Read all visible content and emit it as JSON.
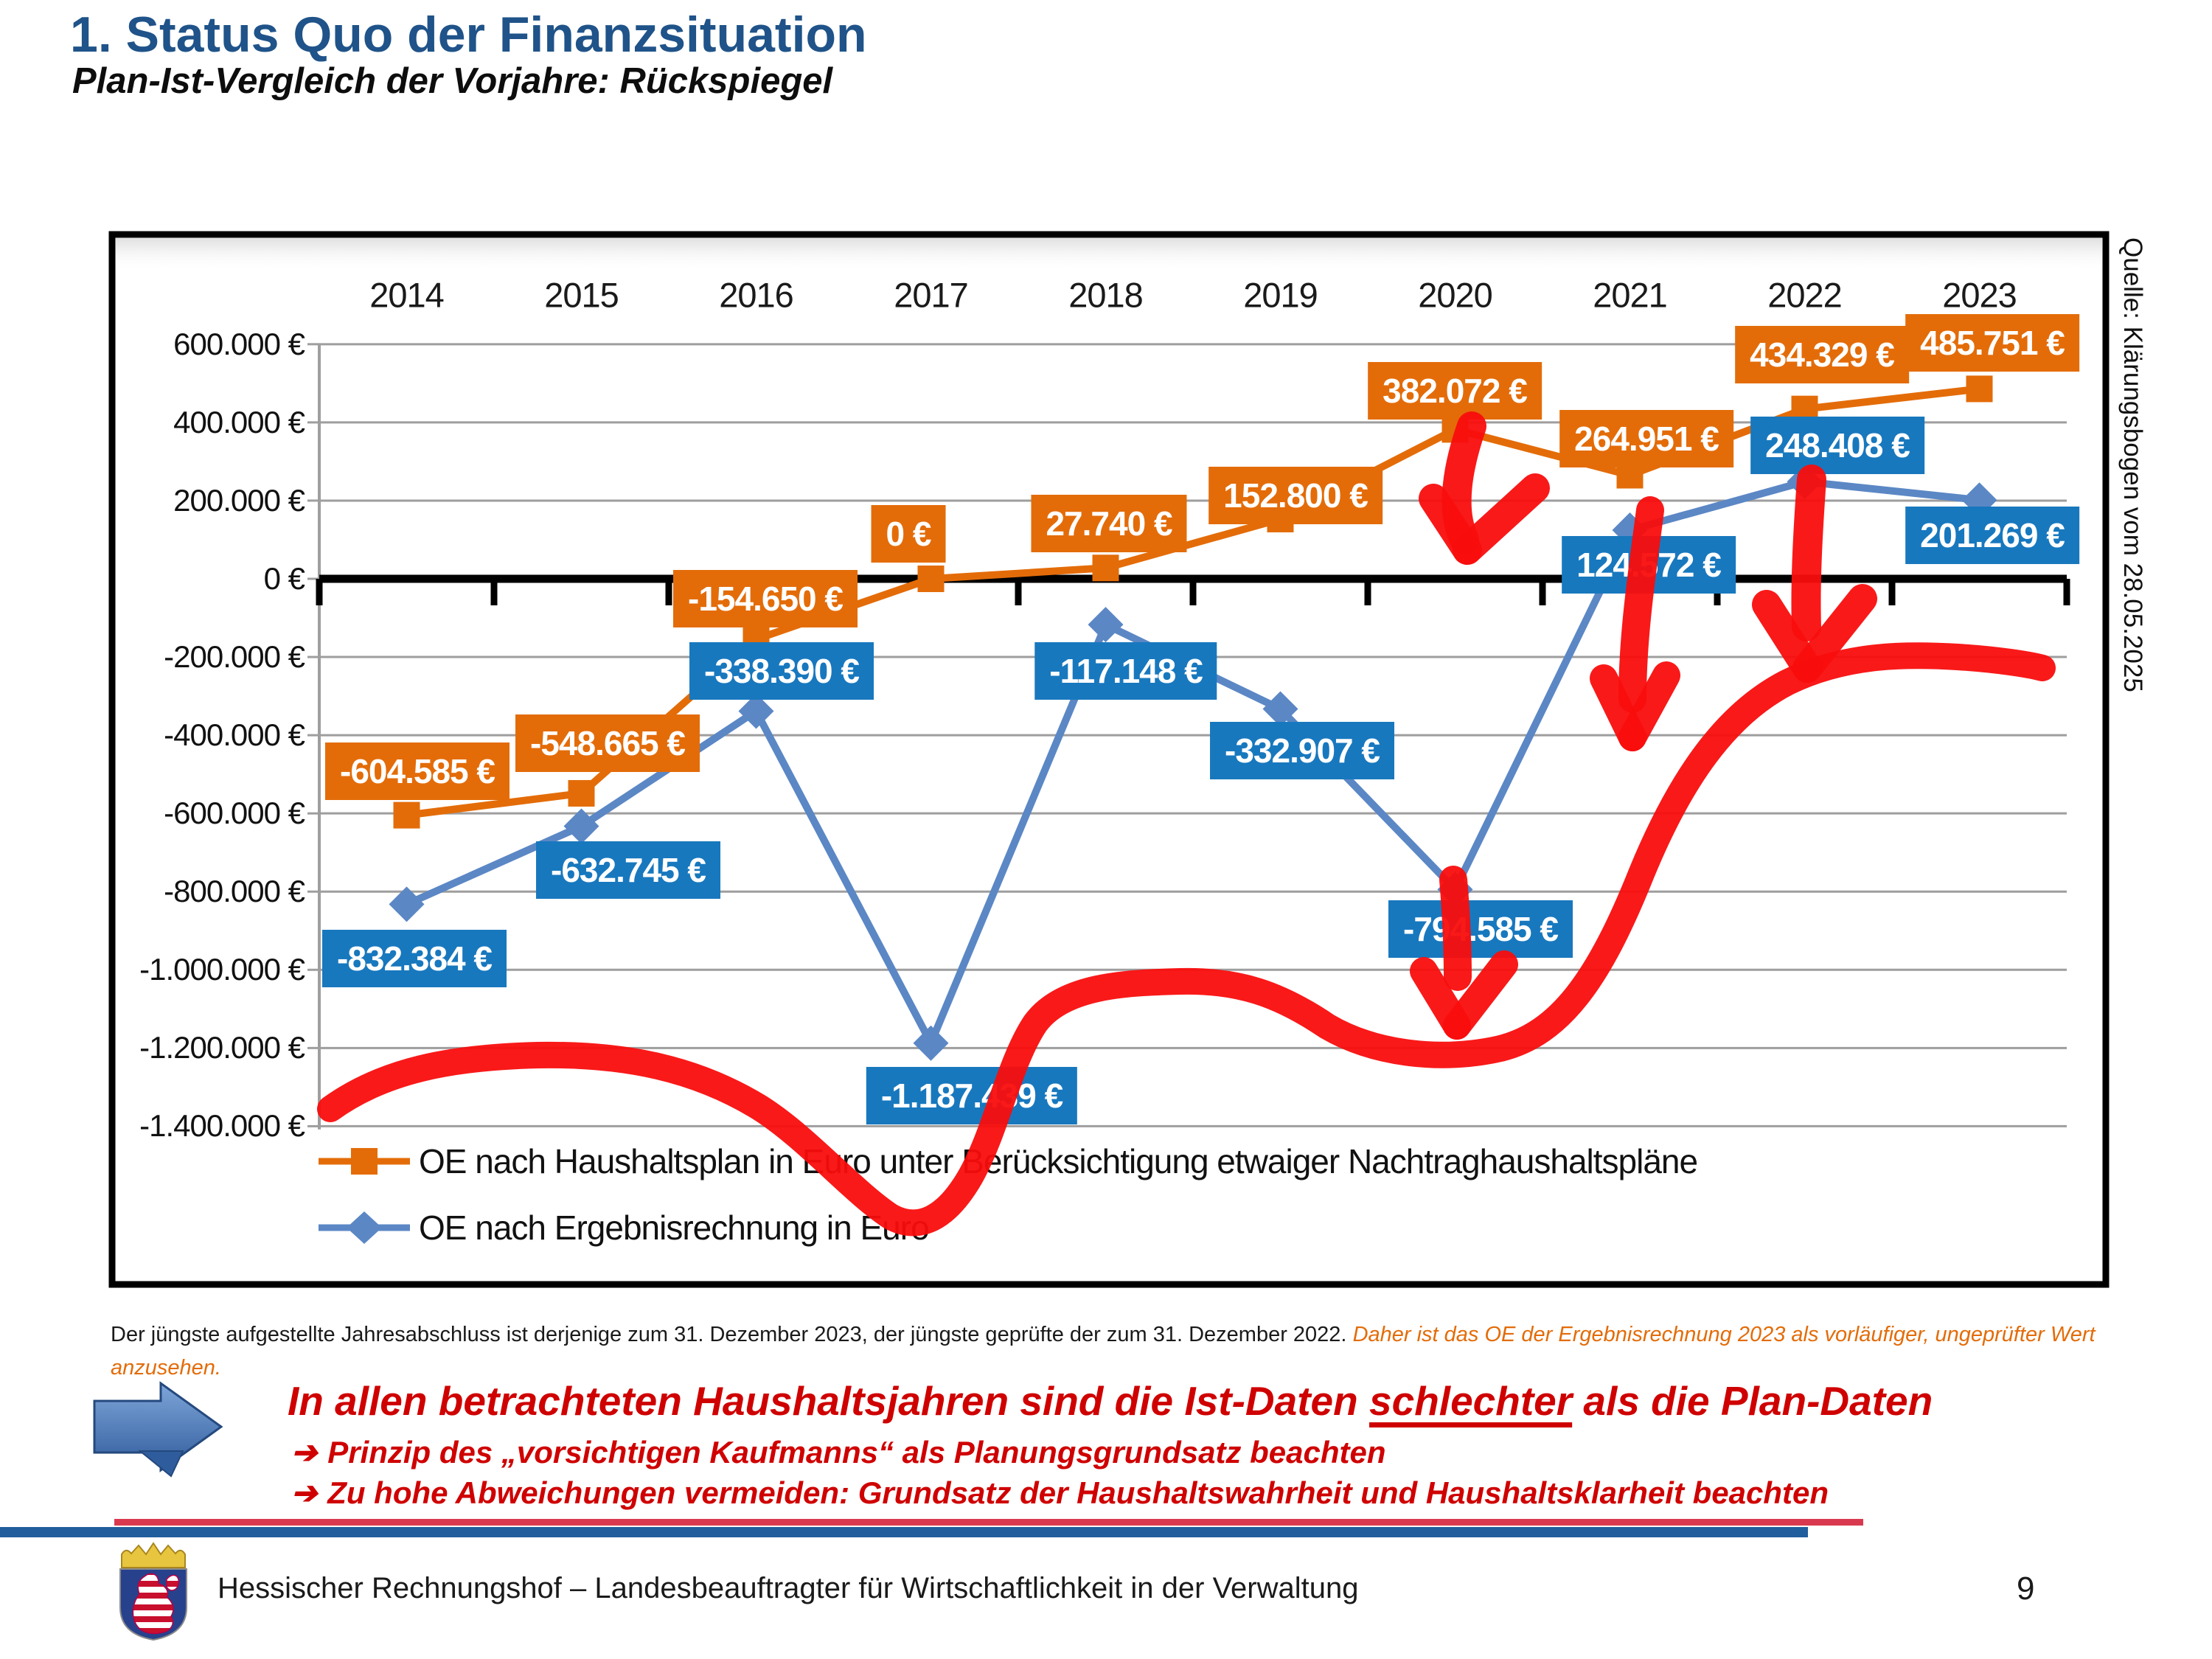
{
  "slide": {
    "title": "1. Status Quo der Finanzsituation",
    "subtitle": "Plan-Ist-Vergleich der Vorjahre: Rückspiegel",
    "source_note": "Quelle: Klärungsbogen vom 28.05.2025",
    "footer": "Hessischer Rechnungshof – Landesbeauftragter für Wirtschaftlichkeit in der Verwaltung",
    "page_number": "9"
  },
  "notes": {
    "black": "Der jüngste aufgestellte Jahresabschluss ist derjenige zum 31. Dezember 2023, der jüngste geprüfte der zum 31. Dezember 2022. ",
    "orange_italic": "Daher ist das OE der Ergebnisrechnung 2023 als vorläufiger, ungeprüfter Wert anzusehen."
  },
  "callout": {
    "headline_pre": "In allen betrachteten Haushaltsjahren sind die Ist-Daten ",
    "headline_emph": "schlechter",
    "headline_post": " als die Plan-Daten",
    "bullet_icon": "➔",
    "bullets": [
      "Prinzip des „vorsichtigen Kaufmanns“ als Planungsgrundsatz beachten",
      "Zu hohe Abweichungen vermeiden: Grundsatz der Haushaltswahrheit und Haushaltsklarheit beachten"
    ]
  },
  "chart_data": {
    "type": "line",
    "title": "",
    "xlabel": "",
    "ylabel": "",
    "categories": [
      "2014",
      "2015",
      "2016",
      "2017",
      "2018",
      "2019",
      "2020",
      "2021",
      "2022",
      "2023"
    ],
    "ylim": [
      -1400000,
      600000
    ],
    "ytick_step": 200000,
    "ytick_labels": [
      "600.000 €",
      "400.000 €",
      "200.000 €",
      "0 €",
      "-200.000 €",
      "-400.000 €",
      "-600.000 €",
      "-800.000 €",
      "-1.000.000 €",
      "-1.200.000 €",
      "-1.400.000 €"
    ],
    "grid": true,
    "legend_position": "bottom-left-inside",
    "series": [
      {
        "name": "OE nach Haushaltsplan in Euro unter Berücksichtigung etwaiger Nachtraghaushaltspläne",
        "marker": "square",
        "line_color": "#E36C09",
        "label_bg": "#E36C09",
        "values": [
          -604585,
          -548665,
          -154650,
          0,
          27740,
          152800,
          382072,
          264951,
          434329,
          485751
        ],
        "data_labels": [
          "-604.585 €",
          "-548.665 €",
          "-154.650 €",
          "0 €",
          "27.740 €",
          "152.800 €",
          "382.072 €",
          "264.951 €",
          "434.329 €",
          "485.751 €"
        ]
      },
      {
        "name": "OE nach Ergebnisrechnung in Euro",
        "marker": "diamond",
        "line_color": "#5B87C5",
        "label_bg": "#1878BE",
        "values": [
          -832384,
          -632745,
          -338390,
          -1187439,
          -117148,
          -332907,
          -794585,
          124572,
          248408,
          201269
        ],
        "data_labels": [
          "-832.384 €",
          "-632.745 €",
          "-338.390 €",
          "-1.187.439 €",
          "-117.148 €",
          "-332.907 €",
          "-794.585 €",
          "124.572 €",
          "248.408 €",
          "201.269 €"
        ]
      }
    ],
    "annotation_colors": {
      "hand_drawn_red": "#F90D0D"
    }
  }
}
